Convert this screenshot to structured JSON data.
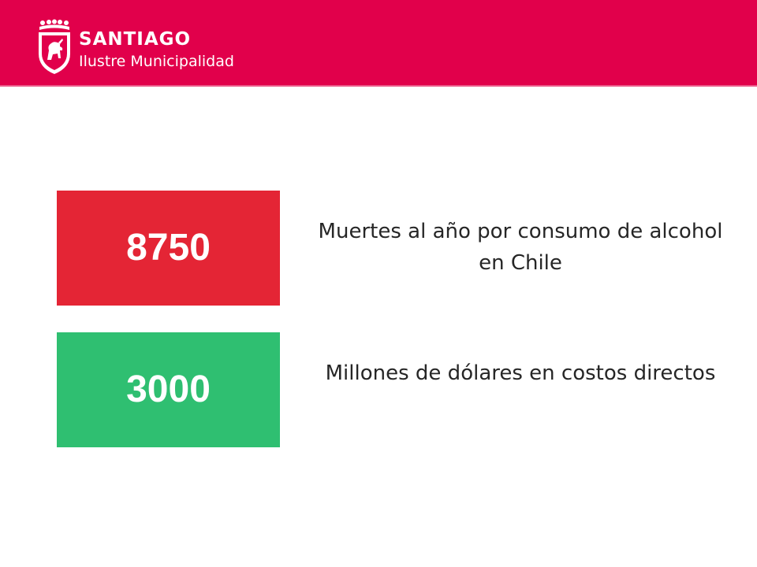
{
  "header": {
    "org_name": "SANTIAGO",
    "org_subtitle": "Ilustre Municipalidad",
    "logo_icon": "santiago-crest-icon"
  },
  "stats": [
    {
      "value": "8750",
      "description": "Muertes al año por consumo de alcohol en Chile",
      "color": "#e42535"
    },
    {
      "value": "3000",
      "description": "Millones de dólares en costos directos",
      "color": "#2fbf71"
    }
  ],
  "colors": {
    "brand": "#e1004b",
    "text": "#262626"
  }
}
